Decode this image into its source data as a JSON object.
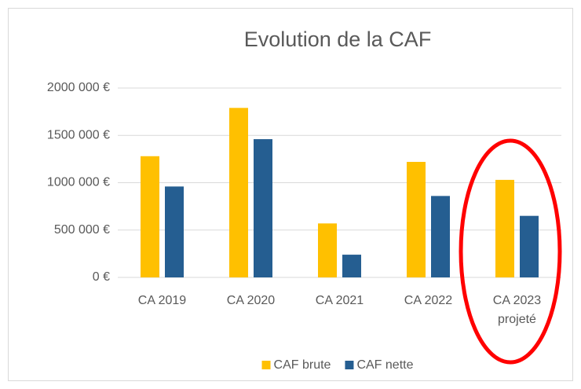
{
  "chart_data": {
    "type": "bar",
    "title": "Evolution de la CAF",
    "categories": [
      "CA 2019",
      "CA 2020",
      "CA 2021",
      "CA 2022",
      "CA 2023 projeté"
    ],
    "series": [
      {
        "name": "CAF brute",
        "color": "#FFC000",
        "values": [
          1280000,
          1790000,
          570000,
          1220000,
          1030000
        ]
      },
      {
        "name": "CAF nette",
        "color": "#255E91",
        "values": [
          960000,
          1460000,
          240000,
          860000,
          650000
        ]
      }
    ],
    "ylim": [
      0,
      2000000
    ],
    "yticks": [
      {
        "value": 0,
        "label": "0 €"
      },
      {
        "value": 500000,
        "label": "500 000 €"
      },
      {
        "value": 1000000,
        "label": "1000 000 €"
      },
      {
        "value": 1500000,
        "label": "1500 000 €"
      },
      {
        "value": 2000000,
        "label": "2000 000 €"
      }
    ],
    "grid": true,
    "legend": "bottom"
  }
}
